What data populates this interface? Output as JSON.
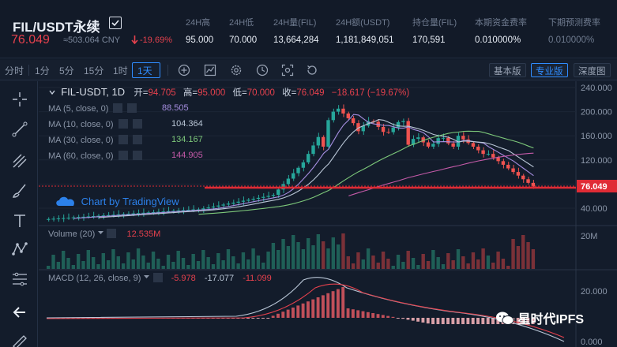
{
  "header": {
    "pair_title": "FIL/USDT永续",
    "last_price": "76.049",
    "cny_price": "≈503.064 CNY",
    "change_pct": "-19.69%",
    "stats": [
      {
        "label": "24H高",
        "value": "95.000"
      },
      {
        "label": "24H低",
        "value": "70.000"
      },
      {
        "label": "24H量(FIL)",
        "value": "13,664,284"
      },
      {
        "label": "24H额(USDT)",
        "value": "1,181,849,051"
      },
      {
        "label": "持仓量(FIL)",
        "value": "170,591"
      },
      {
        "label": "本期资金费率",
        "value": "0.010000%"
      },
      {
        "label": "下期预测费率",
        "value": "0.010000%"
      }
    ]
  },
  "toolbar": {
    "timeframes": [
      "分时",
      "1分",
      "5分",
      "15分",
      "1时",
      "1天"
    ],
    "active_timeframe": "1天",
    "views": [
      "基本版",
      "专业版",
      "深度图"
    ],
    "active_view": "专业版"
  },
  "legend": {
    "symbol": "FIL-USDT, 1D",
    "open_label": "开=",
    "open": "94.705",
    "high_label": "高=",
    "high": "95.000",
    "low_label": "低=",
    "low": "70.000",
    "close_label": "收=",
    "close": "76.049",
    "change": "−18.617 (−19.67%)"
  },
  "ma": [
    {
      "label": "MA (5, close, 0)",
      "value": "88.505",
      "color": "#a58ee0"
    },
    {
      "label": "MA (10, close, 0)",
      "value": "104.364",
      "color": "#b9c6d6"
    },
    {
      "label": "MA (30, close, 0)",
      "value": "134.167",
      "color": "#7dc87a"
    },
    {
      "label": "MA (60, close, 0)",
      "value": "144.905",
      "color": "#c45aa8"
    }
  ],
  "volume": {
    "label": "Volume (20)",
    "value": "12.535M"
  },
  "macd": {
    "label": "MACD (12, 26, close, 9)",
    "v1": "-5.978",
    "v2": "-17.077",
    "v3": "-11.099"
  },
  "price_axis": [
    "240.000",
    "200.000",
    "160.000",
    "120.000",
    "80.000",
    "40.000"
  ],
  "current_price_tag": "76.049",
  "volume_axis": [
    "20M"
  ],
  "macd_axis": [
    "20.000",
    "0.000"
  ],
  "watermark": "Chart by TradingView",
  "wechat_brand": "星时代IPFS",
  "colors": {
    "up": "#26a69a",
    "down": "#ef5350",
    "accent": "#2f8cff",
    "price_line": "#e02b35"
  }
}
